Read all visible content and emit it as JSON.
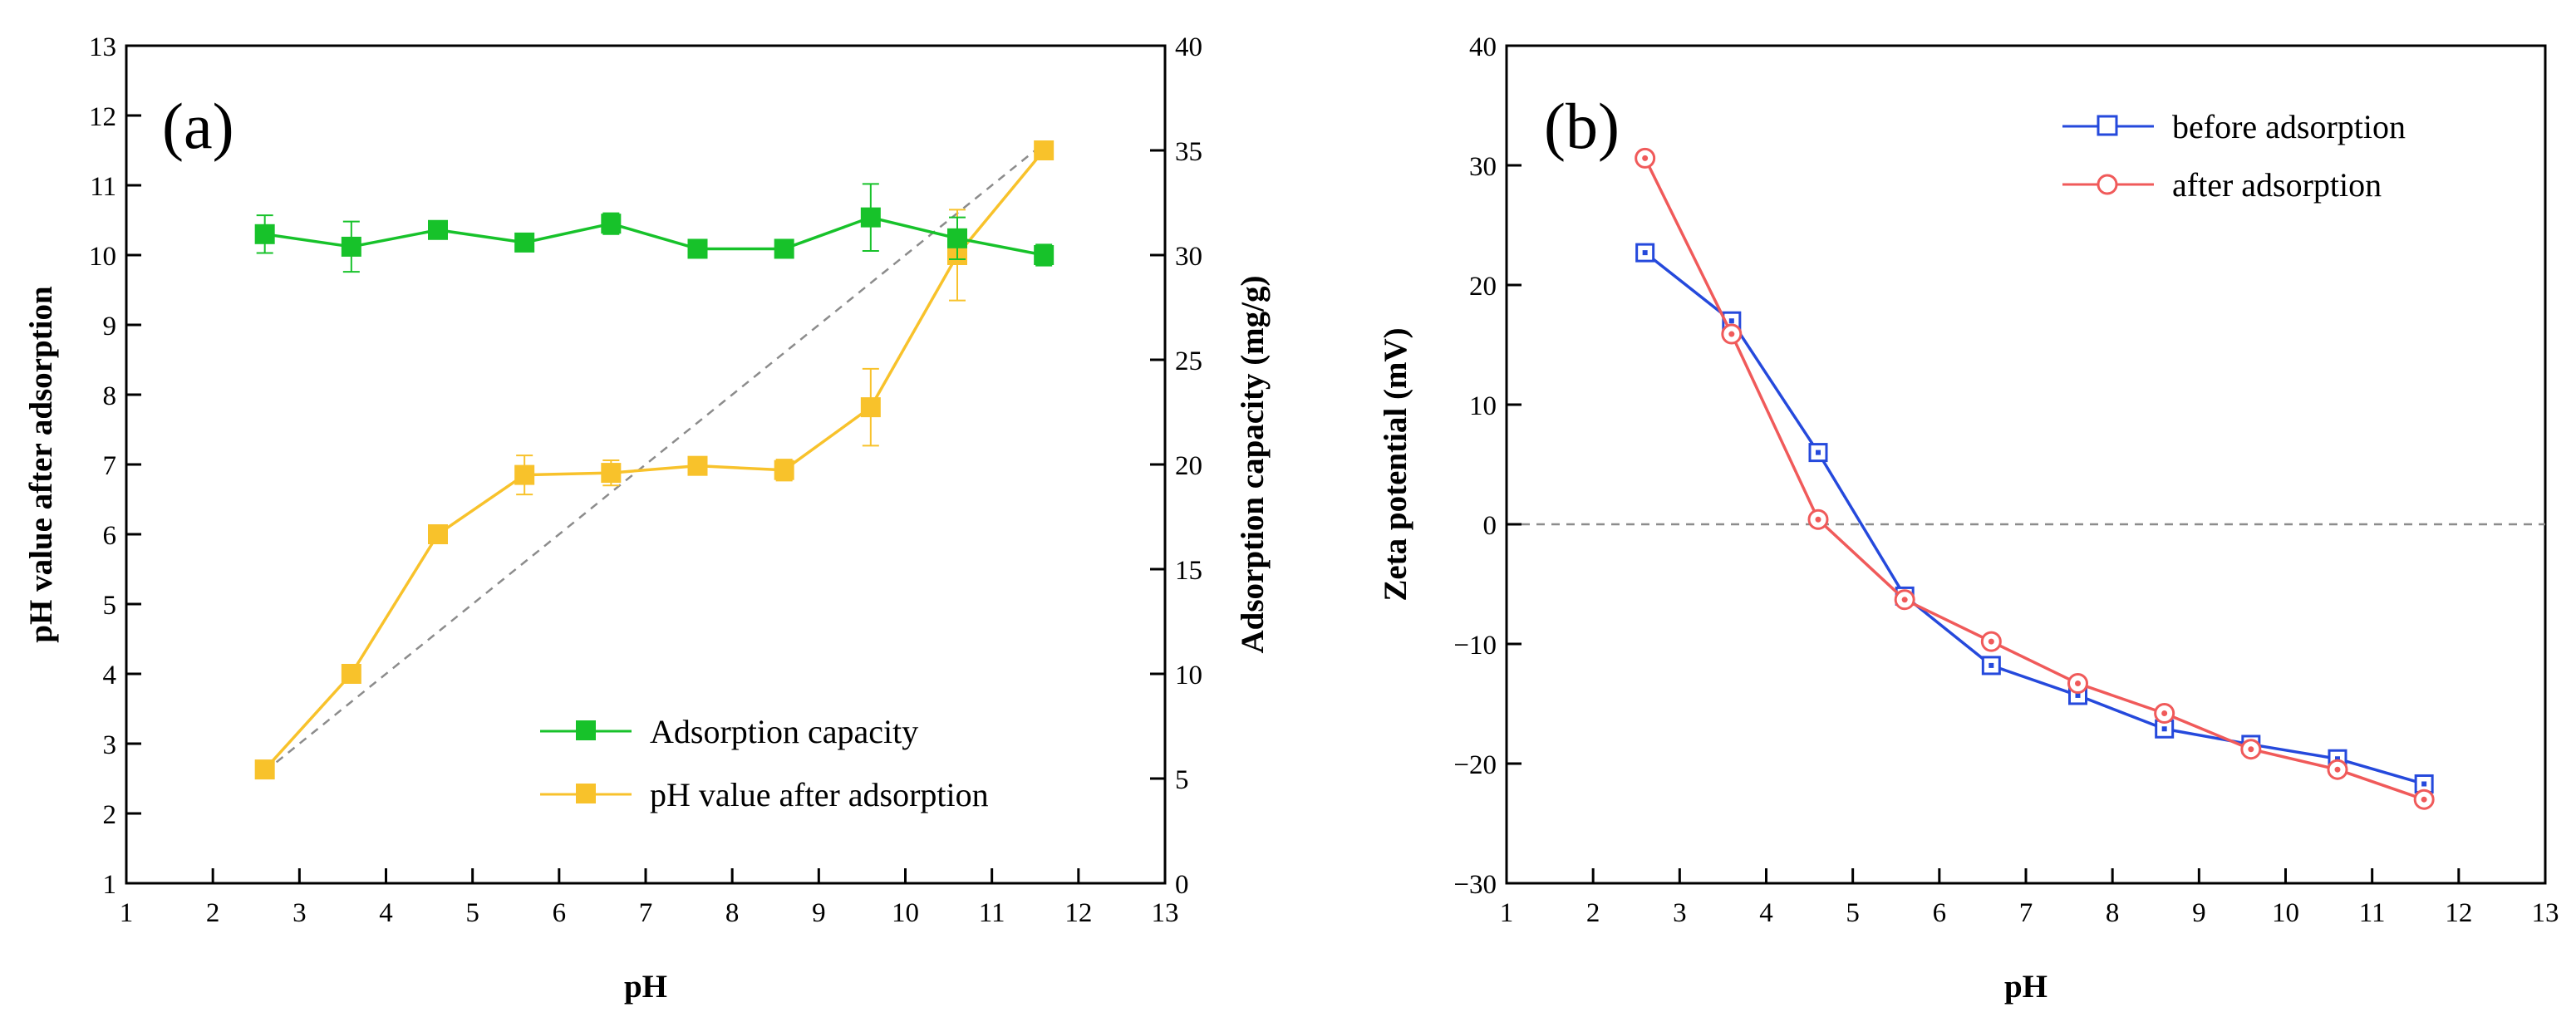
{
  "chart_data": [
    {
      "type": "line",
      "panel_label": "(a)",
      "xlabel": "pH",
      "ylabel_left": "pH value after adsorption",
      "ylabel_right": "Adsorption capacity (mg/g)",
      "xlim": [
        1,
        13
      ],
      "ylim_left": [
        1,
        13
      ],
      "ylim_right": [
        0,
        40
      ],
      "x_ticks": [
        "1",
        "2",
        "3",
        "4",
        "5",
        "6",
        "7",
        "8",
        "9",
        "10",
        "11",
        "12",
        "13"
      ],
      "y_left_ticks": [
        "1",
        "2",
        "3",
        "4",
        "5",
        "6",
        "7",
        "8",
        "9",
        "10",
        "11",
        "12",
        "13"
      ],
      "y_right_ticks": [
        "0",
        "5",
        "10",
        "15",
        "20",
        "25",
        "30",
        "35",
        "40"
      ],
      "legend_position": "bottom-right",
      "reference_line": {
        "style": "dashed",
        "color": "#8c8c8c",
        "x": [
          2.6,
          11.6
        ],
        "y": [
          2.6,
          11.6
        ]
      },
      "series": [
        {
          "name": "Adsorption capacity",
          "axis": "right",
          "color": "#17c22a",
          "marker": "square",
          "x": [
            2.6,
            3.6,
            4.6,
            5.6,
            6.6,
            7.6,
            8.6,
            9.6,
            10.6,
            11.6
          ],
          "values": [
            31.0,
            30.4,
            31.2,
            30.6,
            31.5,
            30.3,
            30.3,
            31.8,
            30.8,
            30.0
          ],
          "errors": [
            0.9,
            1.2,
            0.4,
            0.3,
            0.5,
            0.3,
            0.3,
            1.6,
            1.0,
            0.5
          ]
        },
        {
          "name": "pH value after adsorption",
          "axis": "left",
          "color": "#f8c22b",
          "marker": "square",
          "x": [
            2.6,
            3.6,
            4.6,
            5.6,
            6.6,
            7.6,
            8.6,
            9.6,
            10.6,
            11.6
          ],
          "values": [
            2.63,
            4.0,
            6.0,
            6.85,
            6.88,
            6.98,
            6.92,
            7.82,
            10.0,
            11.5
          ],
          "errors": [
            0,
            0,
            0,
            0.28,
            0.18,
            0.08,
            0.15,
            0.55,
            0.65,
            0
          ]
        }
      ]
    },
    {
      "type": "line",
      "panel_label": "(b)",
      "xlabel": "pH",
      "ylabel": "Zeta potential (mV)",
      "xlim": [
        1,
        13
      ],
      "ylim": [
        -30,
        40
      ],
      "x_ticks": [
        "1",
        "2",
        "3",
        "4",
        "5",
        "6",
        "7",
        "8",
        "9",
        "10",
        "11",
        "12",
        "13"
      ],
      "y_ticks": [
        "−30",
        "−20",
        "−10",
        "0",
        "10",
        "20",
        "30",
        "40"
      ],
      "legend_position": "top-right",
      "reference_line": {
        "style": "dashed",
        "color": "#8c8c8c",
        "y": 0
      },
      "series": [
        {
          "name": "before adsorption",
          "color": "#2549dc",
          "marker": "square",
          "x": [
            2.6,
            3.6,
            4.6,
            5.6,
            6.6,
            7.6,
            8.6,
            9.6,
            10.6,
            11.6
          ],
          "values": [
            22.7,
            17.0,
            6.0,
            -6.0,
            -11.8,
            -14.3,
            -17.1,
            -18.4,
            -19.6,
            -21.7
          ]
        },
        {
          "name": "after adsorption",
          "color": "#f05a5a",
          "marker": "circle",
          "x": [
            2.6,
            3.6,
            4.6,
            5.6,
            6.6,
            7.6,
            8.6,
            9.6,
            10.6,
            11.6
          ],
          "values": [
            30.6,
            15.9,
            0.4,
            -6.3,
            -9.8,
            -13.3,
            -15.8,
            -18.8,
            -20.5,
            -23.0
          ]
        }
      ]
    }
  ]
}
